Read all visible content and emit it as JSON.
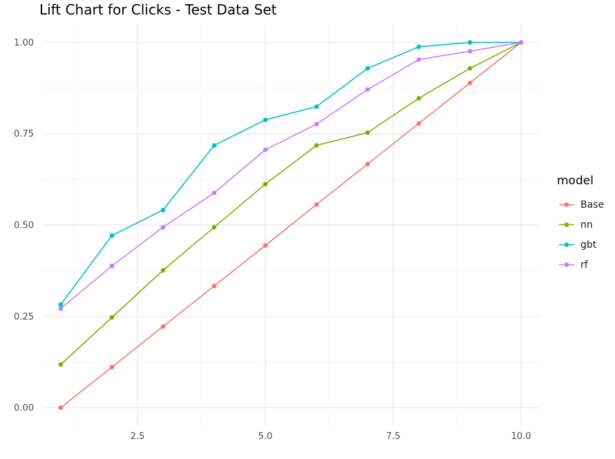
{
  "chart_data": {
    "type": "line",
    "title": "Lift Chart for Clicks - Test Data Set",
    "xlabel": "",
    "ylabel": "",
    "xlim": [
      0.65,
      10.35
    ],
    "ylim": [
      -0.05,
      1.05
    ],
    "x_ticks": [
      2.5,
      5.0,
      7.5,
      10.0
    ],
    "x_tick_labels": [
      "2.5",
      "5.0",
      "7.5",
      "10.0"
    ],
    "y_ticks": [
      0.0,
      0.25,
      0.5,
      0.75,
      1.0
    ],
    "y_tick_labels": [
      "0.00",
      "0.25",
      "0.50",
      "0.75",
      "1.00"
    ],
    "x_minor": [
      1.25,
      3.75,
      6.25,
      8.75
    ],
    "y_minor": [
      0.125,
      0.375,
      0.625,
      0.875
    ],
    "grid": true,
    "legend_title": "model",
    "legend_position": "right",
    "x": [
      1,
      2,
      3,
      4,
      5,
      6,
      7,
      8,
      9,
      10
    ],
    "series": [
      {
        "name": "Base",
        "color": "#F8766D",
        "values": [
          0.0,
          0.111,
          0.222,
          0.333,
          0.444,
          0.556,
          0.667,
          0.778,
          0.889,
          1.0
        ]
      },
      {
        "name": "nn",
        "color": "#7CAE00",
        "values": [
          0.118,
          0.247,
          0.376,
          0.494,
          0.612,
          0.718,
          0.753,
          0.847,
          0.929,
          1.0
        ]
      },
      {
        "name": "gbt",
        "color": "#00BFC4",
        "values": [
          0.282,
          0.471,
          0.541,
          0.718,
          0.788,
          0.824,
          0.929,
          0.988,
          1.0,
          1.0
        ]
      },
      {
        "name": "rf",
        "color": "#C77CFF",
        "values": [
          0.271,
          0.388,
          0.494,
          0.588,
          0.706,
          0.776,
          0.871,
          0.953,
          0.976,
          1.0
        ]
      }
    ]
  }
}
